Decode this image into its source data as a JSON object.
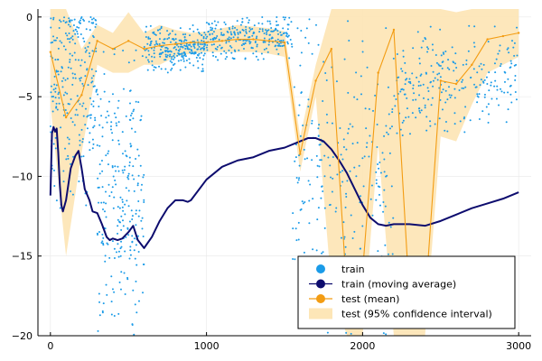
{
  "chart_data": {
    "type": "scatter",
    "title": "",
    "xlabel": "",
    "ylabel": "",
    "xlim": [
      -80,
      3080
    ],
    "ylim": [
      -20,
      0.5
    ],
    "x_ticks": [
      0,
      1000,
      2000,
      3000
    ],
    "x_tick_labels": [
      "0",
      "1000",
      "2000",
      "3000"
    ],
    "y_ticks": [
      0,
      -5,
      -10,
      -15,
      -20
    ],
    "y_tick_labels": [
      "0",
      "−5",
      "−10",
      "−15",
      "−20"
    ],
    "grid": true,
    "legend_position": "bottom-right",
    "legend": [
      {
        "label": "train",
        "kind": "marker",
        "color": "#1a9be8"
      },
      {
        "label": "train (moving average)",
        "kind": "line-marker",
        "color": "#0d0c6e"
      },
      {
        "label": "test (mean)",
        "kind": "line-marker",
        "color": "#f39c12"
      },
      {
        "label": "test (95% confidence interval)",
        "kind": "band",
        "color": "#fde6b7"
      }
    ],
    "series": [
      {
        "name": "train (moving average)",
        "color": "#0d0c6e",
        "x": [
          0,
          10,
          20,
          30,
          40,
          50,
          60,
          70,
          80,
          100,
          130,
          160,
          180,
          200,
          220,
          250,
          270,
          300,
          330,
          360,
          380,
          400,
          430,
          460,
          500,
          530,
          560,
          600,
          650,
          700,
          750,
          800,
          850,
          880,
          900,
          1000,
          1100,
          1200,
          1300,
          1400,
          1500,
          1600,
          1650,
          1700,
          1750,
          1800,
          1850,
          1900,
          1950,
          2000,
          2050,
          2100,
          2150,
          2200,
          2300,
          2400,
          2500,
          2600,
          2700,
          2800,
          2900,
          3000
        ],
        "y": [
          -11.2,
          -7.3,
          -6.9,
          -7.2,
          -7.0,
          -8.5,
          -10.5,
          -11.8,
          -12.2,
          -11.5,
          -9.5,
          -8.7,
          -8.4,
          -9.5,
          -10.8,
          -11.5,
          -12.2,
          -12.3,
          -13.0,
          -13.8,
          -14.0,
          -13.9,
          -14.0,
          -13.9,
          -13.5,
          -13.1,
          -14.0,
          -14.5,
          -13.8,
          -12.8,
          -12.0,
          -11.5,
          -11.5,
          -11.6,
          -11.5,
          -10.2,
          -9.4,
          -9.0,
          -8.8,
          -8.4,
          -8.2,
          -7.8,
          -7.6,
          -7.6,
          -7.8,
          -8.3,
          -9.0,
          -9.8,
          -10.8,
          -11.8,
          -12.6,
          -13.0,
          -13.1,
          -13.0,
          -13.0,
          -13.1,
          -12.8,
          -12.4,
          -12.0,
          -11.7,
          -11.4,
          -11.0
        ]
      },
      {
        "name": "test (mean)",
        "color": "#f39c12",
        "x": [
          0,
          100,
          200,
          300,
          400,
          500,
          600,
          700,
          800,
          900,
          1000,
          1100,
          1200,
          1300,
          1400,
          1500,
          1600,
          1700,
          1800,
          1900,
          2000,
          2100,
          2200,
          2300,
          2400,
          2500,
          2600,
          2700,
          2800,
          2900,
          3000
        ],
        "y": [
          -2.2,
          -6.3,
          -4.9,
          -1.5,
          -2.0,
          -1.5,
          -2.0,
          -1.8,
          -1.7,
          -1.6,
          -1.6,
          -1.5,
          -1.4,
          -1.4,
          -1.5,
          -1.6,
          -8.6,
          -4.0,
          -2.0,
          -17.5,
          -16.0,
          -3.5,
          -0.8,
          -17.5,
          -18.0,
          -4.0,
          -4.2,
          -3.0,
          -1.4,
          -1.2,
          -1.0
        ]
      },
      {
        "name": "test (95% confidence interval)",
        "color": "#fde6b7",
        "x": [
          0,
          100,
          200,
          300,
          400,
          500,
          600,
          700,
          800,
          900,
          1000,
          1100,
          1200,
          1300,
          1400,
          1500,
          1600,
          1700,
          1800,
          1900,
          2000,
          2100,
          2200,
          2300,
          2400,
          2500,
          2600,
          2700,
          2800,
          2900,
          3000
        ],
        "upper": [
          0.5,
          0.5,
          -2.0,
          -0.5,
          -1.0,
          0.3,
          -1.0,
          -0.5,
          -0.8,
          -1.0,
          -0.9,
          -0.7,
          -0.5,
          -0.6,
          -0.7,
          -0.9,
          -7.5,
          -3.0,
          0.5,
          0.5,
          0.5,
          0.5,
          0.5,
          0.5,
          0.5,
          0.5,
          0.3,
          0.5,
          0.5,
          0.5,
          0.5
        ],
        "lower": [
          -5.5,
          -15.0,
          -8.5,
          -3.0,
          -3.5,
          -3.5,
          -3.0,
          -3.0,
          -2.5,
          -2.3,
          -2.2,
          -2.2,
          -2.2,
          -2.2,
          -2.3,
          -2.5,
          -9.7,
          -5.0,
          -17.0,
          -20.0,
          -20.0,
          -8.0,
          -20.0,
          -20.0,
          -20.0,
          -7.5,
          -7.8,
          -5.5,
          -3.5,
          -3.0,
          -2.5
        ]
      }
    ],
    "scatter_series": {
      "name": "train",
      "color": "#1a9be8",
      "point_count": 1500,
      "x_range": [
        0,
        3000
      ],
      "note_regions": [
        {
          "x": [
            0,
            300
          ],
          "y_center": -4,
          "spread": 8
        },
        {
          "x": [
            300,
            600
          ],
          "y_center": -11,
          "spread": 9
        },
        {
          "x": [
            600,
            1000
          ],
          "y_center": -2,
          "spread": 1.5
        },
        {
          "x": [
            1000,
            1550
          ],
          "y_center": -1.2,
          "spread": 1.5
        },
        {
          "x": [
            1550,
            2200
          ],
          "y_center": -10,
          "spread": 10
        },
        {
          "x": [
            2200,
            3000
          ],
          "y_center": -4,
          "spread": 3.5
        }
      ]
    }
  }
}
